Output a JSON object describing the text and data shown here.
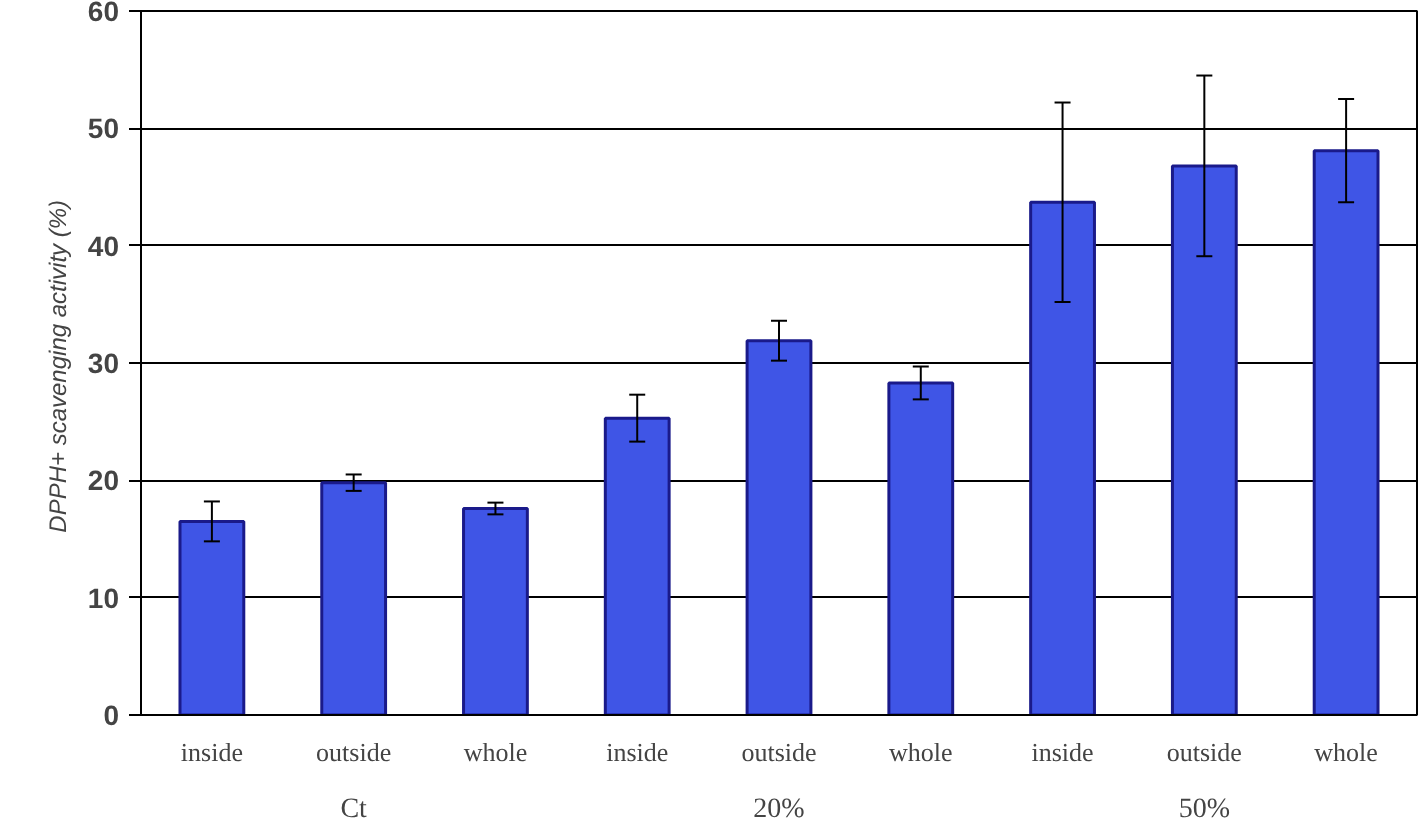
{
  "chart_data": {
    "type": "bar",
    "ylabel": "DPPH+  scavenging activity (%)",
    "categories": [
      "inside",
      "outside",
      "whole",
      "inside",
      "outside",
      "whole",
      "inside",
      "outside",
      "whole"
    ],
    "values": [
      16.5,
      19.8,
      17.6,
      25.3,
      31.9,
      28.3,
      43.7,
      46.8,
      48.1
    ],
    "errors": [
      1.7,
      0.7,
      0.5,
      2,
      1.7,
      1.4,
      8.5,
      7.7,
      4.4
    ],
    "color": "#3f55e6",
    "ylim": [
      0,
      60
    ],
    "yticks": [
      0,
      10,
      20,
      30,
      40,
      50,
      60
    ],
    "grid": "y",
    "annotations": [
      "Ct",
      "20%",
      "50%"
    ]
  }
}
